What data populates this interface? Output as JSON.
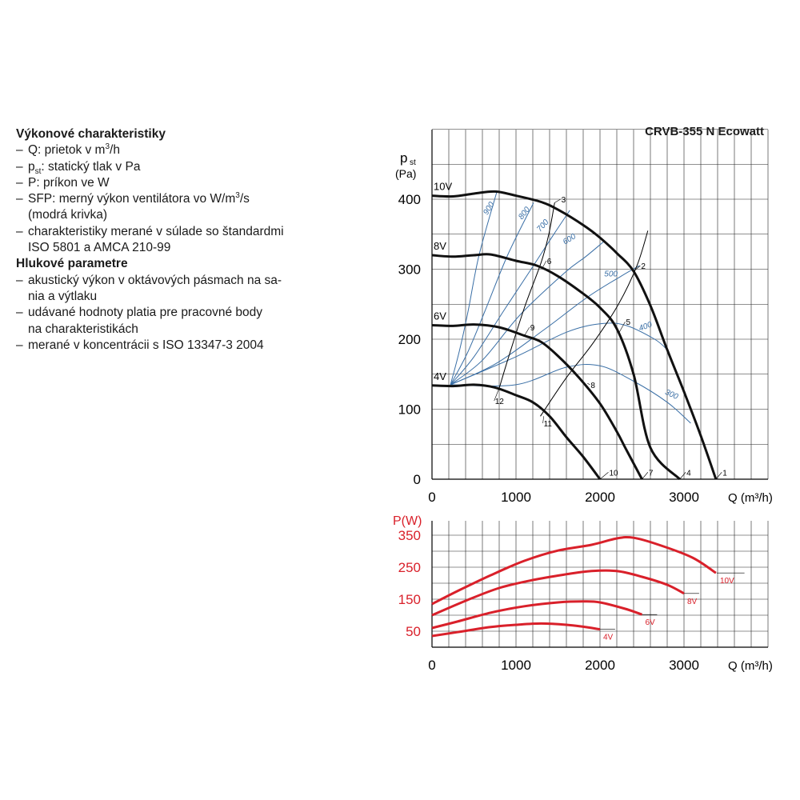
{
  "model_title": "CRVB-355 N Ecowatt",
  "performance": {
    "heading": "Výkonové charakteristiky",
    "items": [
      {
        "pre": "Q: prietok v m",
        "sup": "3",
        "post": "/h",
        "line2": ""
      },
      {
        "pre": "p",
        "sub": "st",
        "post": ": statický tlak v Pa",
        "line2": ""
      },
      {
        "pre": "P: príkon ve W",
        "post": "",
        "line2": ""
      },
      {
        "pre": "SFP: merný výkon ventilátora vo W/m",
        "sup": "3",
        "post": "/s",
        "line2": "(modrá krivka)"
      },
      {
        "pre": "charakteristiky merané v súlade so štandardmi",
        "post": "",
        "line2": "ISO 5801 a AMCA 210-99"
      }
    ]
  },
  "noise": {
    "heading": "Hlukové parametre",
    "items": [
      {
        "pre": "akustický výkon v oktávových pásmach na sa-",
        "post": "",
        "line2": "nia a výtlaku"
      },
      {
        "pre": "udávané hodnoty platia pre pracovné body",
        "post": "",
        "line2": "na charakteristikách"
      },
      {
        "pre": "merané v koncentrácii s ISO 13347-3 2004",
        "post": "",
        "line2": ""
      }
    ]
  },
  "colors": {
    "fan": "#111111",
    "sfp": "#3a6fa6",
    "power": "#d9202a",
    "grid": "#222222"
  },
  "chart_data": [
    {
      "type": "line",
      "ylabel_main": "p",
      "ylabel_sub": "st",
      "yunit": "(Pa)",
      "xlabel": "Q (m³/h)",
      "xlim": [
        0,
        4000
      ],
      "ylim": [
        0,
        400
      ],
      "xticks": [
        0,
        1000,
        2000,
        3000
      ],
      "yticks": [
        0,
        100,
        200,
        300,
        400
      ],
      "grid": true,
      "series": [
        {
          "name": "10V",
          "points": [
            [
              0,
              405
            ],
            [
              250,
              404
            ],
            [
              500,
              408
            ],
            [
              750,
              411
            ],
            [
              1000,
              405
            ],
            [
              1300,
              396
            ],
            [
              1500,
              385
            ],
            [
              1800,
              363
            ],
            [
              2000,
              345
            ],
            [
              2200,
              323
            ],
            [
              2400,
              297
            ],
            [
              2600,
              248
            ],
            [
              2800,
              185
            ],
            [
              3000,
              125
            ],
            [
              3200,
              62
            ],
            [
              3380,
              0
            ]
          ]
        },
        {
          "name": "8V",
          "points": [
            [
              0,
              320
            ],
            [
              250,
              318
            ],
            [
              500,
              320
            ],
            [
              700,
              321
            ],
            [
              1000,
              312
            ],
            [
              1250,
              305
            ],
            [
              1500,
              290
            ],
            [
              1800,
              265
            ],
            [
              2000,
              245
            ],
            [
              2200,
              215
            ],
            [
              2400,
              150
            ],
            [
              2600,
              45
            ],
            [
              2950,
              0
            ]
          ]
        },
        {
          "name": "6V",
          "points": [
            [
              0,
              220
            ],
            [
              250,
              219
            ],
            [
              500,
              221
            ],
            [
              800,
              217
            ],
            [
              1100,
              205
            ],
            [
              1300,
              196
            ],
            [
              1500,
              176
            ],
            [
              1750,
              145
            ],
            [
              2000,
              108
            ],
            [
              2200,
              68
            ],
            [
              2300,
              45
            ],
            [
              2500,
              0
            ]
          ]
        },
        {
          "name": "4V",
          "points": [
            [
              0,
              134
            ],
            [
              250,
              133
            ],
            [
              500,
              135
            ],
            [
              750,
              131
            ],
            [
              1000,
              120
            ],
            [
              1200,
              110
            ],
            [
              1400,
              90
            ],
            [
              1600,
              60
            ],
            [
              1800,
              32
            ],
            [
              2000,
              0
            ]
          ]
        }
      ],
      "sfp_curves": [
        {
          "label": "900",
          "points": [
            [
              220,
              135
            ],
            [
              330,
              185
            ],
            [
              430,
              240
            ],
            [
              560,
              320
            ],
            [
              770,
              410
            ]
          ]
        },
        {
          "label": "800",
          "points": [
            [
              220,
              135
            ],
            [
              420,
              180
            ],
            [
              630,
              240
            ],
            [
              900,
              320
            ],
            [
              1210,
              395
            ]
          ]
        },
        {
          "label": "700",
          "points": [
            [
              220,
              135
            ],
            [
              500,
              175
            ],
            [
              850,
              240
            ],
            [
              1180,
              300
            ],
            [
              1450,
              350
            ],
            [
              1640,
              384
            ]
          ]
        },
        {
          "label": "600",
          "points": [
            [
              220,
              135
            ],
            [
              600,
              170
            ],
            [
              1050,
              235
            ],
            [
              1580,
              295
            ],
            [
              1830,
              318
            ],
            [
              2050,
              340
            ]
          ]
        },
        {
          "label": "500",
          "points": [
            [
              220,
              135
            ],
            [
              760,
              165
            ],
            [
              1350,
              215
            ],
            [
              1850,
              260
            ],
            [
              2250,
              290
            ],
            [
              2470,
              305
            ]
          ]
        },
        {
          "label": "400",
          "points": [
            [
              220,
              135
            ],
            [
              1000,
              175
            ],
            [
              1600,
              210
            ],
            [
              2000,
              222
            ],
            [
              2300,
              220
            ],
            [
              2650,
              200
            ],
            [
              2800,
              185
            ]
          ]
        },
        {
          "label": "300",
          "points": [
            [
              220,
              135
            ],
            [
              1000,
              135
            ],
            [
              1600,
              160
            ],
            [
              2000,
              162
            ],
            [
              2400,
              140
            ],
            [
              2800,
              110
            ],
            [
              3080,
              80
            ]
          ]
        }
      ],
      "sfp_labels": [
        {
          "label": "900",
          "x": 700,
          "y": 385,
          "angle": -58
        },
        {
          "label": "800",
          "x": 1120,
          "y": 378,
          "angle": -52
        },
        {
          "label": "700",
          "x": 1340,
          "y": 360,
          "angle": -48
        },
        {
          "label": "600",
          "x": 1650,
          "y": 340,
          "angle": -32
        },
        {
          "label": "500",
          "x": 2130,
          "y": 290,
          "angle": 0
        },
        {
          "label": "400",
          "x": 2550,
          "y": 215,
          "angle": -20
        },
        {
          "label": "300",
          "x": 2840,
          "y": 118,
          "angle": 25
        }
      ],
      "system_lines": [
        {
          "points": [
            [
              800,
              130
            ],
            [
              900,
              170
            ],
            [
              1100,
              245
            ],
            [
              1300,
              310
            ],
            [
              1390,
              350
            ],
            [
              1460,
              395
            ]
          ]
        },
        {
          "points": [
            [
              1290,
              90
            ],
            [
              1600,
              145
            ],
            [
              1920,
              195
            ],
            [
              2220,
              250
            ],
            [
              2440,
              305
            ],
            [
              2570,
              355
            ]
          ]
        }
      ],
      "operating_points": [
        {
          "label": "1",
          "x": 3380,
          "y": 0,
          "lx": 3450,
          "ly": 10
        },
        {
          "label": "2",
          "x": 2400,
          "y": 297,
          "lx": 2480,
          "ly": 305
        },
        {
          "label": "3",
          "x": 1460,
          "y": 395,
          "lx": 1530,
          "ly": 400
        },
        {
          "label": "4",
          "x": 2950,
          "y": 0,
          "lx": 3020,
          "ly": 10
        },
        {
          "label": "5",
          "x": 2230,
          "y": 210,
          "lx": 2300,
          "ly": 225
        },
        {
          "label": "6",
          "x": 1320,
          "y": 303,
          "lx": 1360,
          "ly": 312
        },
        {
          "label": "7",
          "x": 2500,
          "y": 0,
          "lx": 2570,
          "ly": 10
        },
        {
          "label": "8",
          "x": 1850,
          "y": 137,
          "lx": 1880,
          "ly": 135
        },
        {
          "label": "9",
          "x": 1100,
          "y": 205,
          "lx": 1160,
          "ly": 217
        },
        {
          "label": "10",
          "x": 2000,
          "y": 0,
          "lx": 2100,
          "ly": 10
        },
        {
          "label": "11",
          "x": 1330,
          "y": 90,
          "lx": 1320,
          "ly": 80
        },
        {
          "label": "12",
          "x": 800,
          "y": 130,
          "lx": 740,
          "ly": 112
        }
      ]
    },
    {
      "type": "line",
      "ylabel": "P(W)",
      "xlabel": "Q (m³/h)",
      "xlim": [
        0,
        4000
      ],
      "ylim": [
        0,
        400
      ],
      "xticks": [
        0,
        1000,
        2000,
        3000
      ],
      "yticks": [
        50,
        150,
        250,
        350
      ],
      "grid": true,
      "series": [
        {
          "name": "10V",
          "points": [
            [
              0,
              135
            ],
            [
              300,
              175
            ],
            [
              700,
              225
            ],
            [
              1100,
              270
            ],
            [
              1500,
              302
            ],
            [
              1900,
              320
            ],
            [
              2200,
              340
            ],
            [
              2400,
              342
            ],
            [
              2700,
              320
            ],
            [
              3100,
              280
            ],
            [
              3380,
              232
            ]
          ]
        },
        {
          "name": "8V",
          "points": [
            [
              0,
              100
            ],
            [
              400,
              145
            ],
            [
              800,
              185
            ],
            [
              1200,
              210
            ],
            [
              1600,
              228
            ],
            [
              1900,
              238
            ],
            [
              2200,
              238
            ],
            [
              2500,
              220
            ],
            [
              2800,
              195
            ],
            [
              3000,
              168
            ]
          ]
        },
        {
          "name": "6V",
          "points": [
            [
              0,
              60
            ],
            [
              300,
              80
            ],
            [
              700,
              108
            ],
            [
              1100,
              128
            ],
            [
              1500,
              140
            ],
            [
              1800,
              143
            ],
            [
              2000,
              140
            ],
            [
              2300,
              120
            ],
            [
              2500,
              102
            ]
          ]
        },
        {
          "name": "4V",
          "points": [
            [
              0,
              35
            ],
            [
              300,
              47
            ],
            [
              700,
              63
            ],
            [
              1000,
              70
            ],
            [
              1300,
              74
            ],
            [
              1600,
              70
            ],
            [
              1800,
              64
            ],
            [
              2000,
              56
            ]
          ]
        }
      ],
      "series_labels": [
        {
          "name": "10V",
          "x": 3390,
          "y": 232,
          "tick_to": 3720
        },
        {
          "name": "8V",
          "x": 3000,
          "y": 168,
          "tick_to": 3180
        },
        {
          "name": "6V",
          "x": 2500,
          "y": 102,
          "tick_to": 2680
        },
        {
          "name": "4V",
          "x": 2000,
          "y": 56,
          "tick_to": 2180
        }
      ]
    }
  ]
}
